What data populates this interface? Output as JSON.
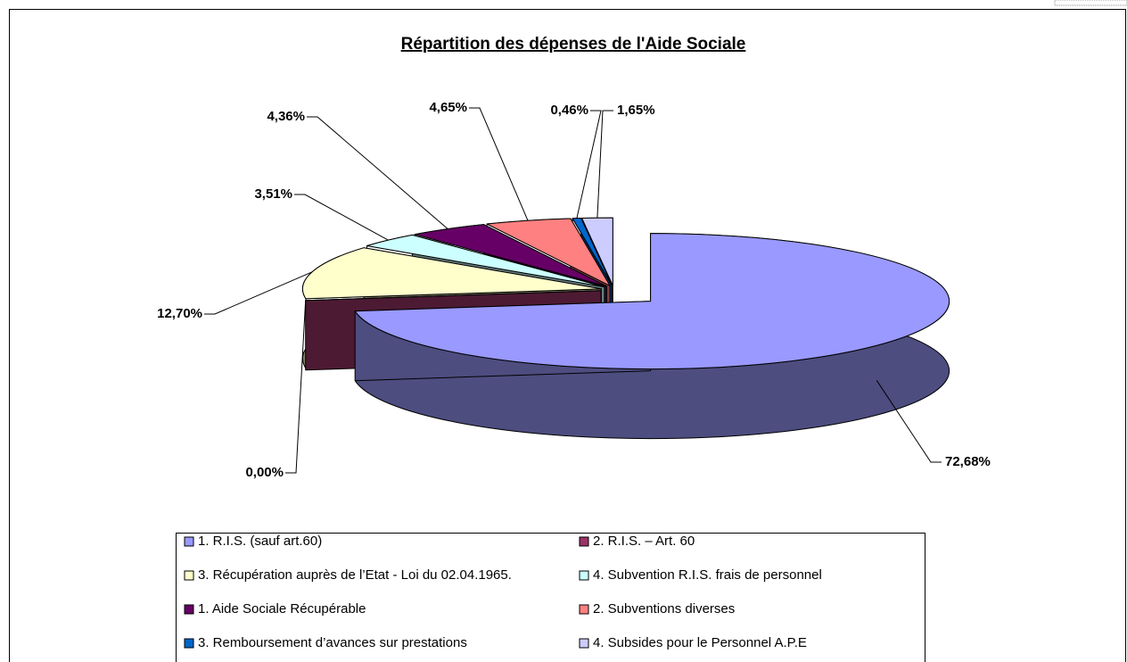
{
  "chart_data": {
    "type": "pie3d",
    "title": "Répartition des dépenses de l'Aide Sociale",
    "categories": [
      "1. R.I.S. (sauf art.60)",
      "2. R.I.S. – Art. 60",
      "3. Récupération auprès de l’Etat - Loi du 02.04.1965.",
      "4. Subvention R.I.S. frais de personnel",
      "1. Aide Sociale Récupérable",
      "2. Subventions diverses",
      "3. Remboursement d’avances sur prestations",
      "4. Subsides pour le Personnel A.P.E"
    ],
    "values": [
      72.68,
      0.0,
      12.7,
      3.51,
      4.36,
      4.65,
      0.46,
      1.65
    ],
    "value_labels": [
      "72,68%",
      "0,00%",
      "12,70%",
      "3,51%",
      "4,36%",
      "4,65%",
      "0,46%",
      "1,65%"
    ],
    "colors": [
      "#9999ff",
      "#993366",
      "#ffffcc",
      "#ccffff",
      "#660066",
      "#ff8080",
      "#0066cc",
      "#ccccff"
    ],
    "legend": "bottom"
  }
}
